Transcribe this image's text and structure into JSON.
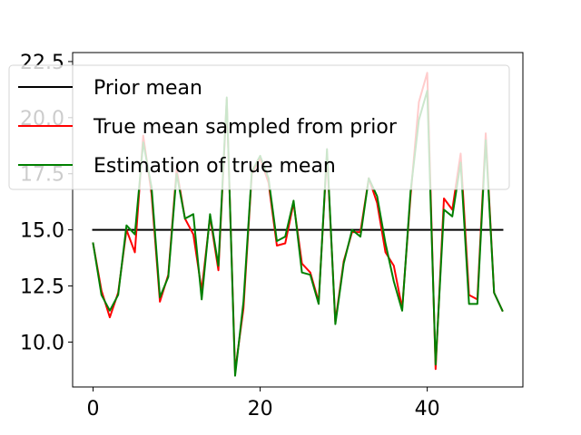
{
  "chart_data": {
    "type": "line",
    "title": "",
    "xlabel": "",
    "ylabel": "",
    "xlim": [
      -2.45,
      51.45
    ],
    "ylim": [
      8.0,
      22.9
    ],
    "xticks": [
      0,
      20,
      40
    ],
    "yticks": [
      10.0,
      12.5,
      15.0,
      17.5,
      20.0,
      22.5
    ],
    "xtick_labels": [
      "0",
      "20",
      "40"
    ],
    "ytick_labels": [
      "10.0",
      "12.5",
      "15.0",
      "17.5",
      "20.0",
      "22.5"
    ],
    "grid": false,
    "legend_position": "upper",
    "x": [
      0,
      1,
      2,
      3,
      4,
      5,
      6,
      7,
      8,
      9,
      10,
      11,
      12,
      13,
      14,
      15,
      16,
      17,
      18,
      19,
      20,
      21,
      22,
      23,
      24,
      25,
      26,
      27,
      28,
      29,
      30,
      31,
      32,
      33,
      34,
      35,
      36,
      37,
      38,
      39,
      40,
      41,
      42,
      43,
      44,
      45,
      46,
      47,
      48,
      49
    ],
    "series": [
      {
        "name": "Prior mean",
        "color": "#000000",
        "values": [
          15.0,
          15.0,
          15.0,
          15.0,
          15.0,
          15.0,
          15.0,
          15.0,
          15.0,
          15.0,
          15.0,
          15.0,
          15.0,
          15.0,
          15.0,
          15.0,
          15.0,
          15.0,
          15.0,
          15.0,
          15.0,
          15.0,
          15.0,
          15.0,
          15.0,
          15.0,
          15.0,
          15.0,
          15.0,
          15.0,
          15.0,
          15.0,
          15.0,
          15.0,
          15.0,
          15.0,
          15.0,
          15.0,
          15.0,
          15.0,
          15.0,
          15.0,
          15.0,
          15.0,
          15.0,
          15.0,
          15.0,
          15.0,
          15.0,
          15.0
        ]
      },
      {
        "name": "True mean sampled from prior",
        "color": "#ff0000",
        "values": [
          14.4,
          12.3,
          11.1,
          12.2,
          15.0,
          14.0,
          19.2,
          16.6,
          11.8,
          13.0,
          17.7,
          15.5,
          14.8,
          12.3,
          15.6,
          13.2,
          20.8,
          8.7,
          11.5,
          17.5,
          18.2,
          17.1,
          14.3,
          14.4,
          16.2,
          13.5,
          13.1,
          11.8,
          18.4,
          10.9,
          13.6,
          14.9,
          14.9,
          17.3,
          16.2,
          14.0,
          13.4,
          11.5,
          16.5,
          20.7,
          22.0,
          8.8,
          16.4,
          15.9,
          18.4,
          12.1,
          11.9,
          19.3,
          12.2,
          11.4
        ]
      },
      {
        "name": "Estimation of true mean",
        "color": "#008000",
        "values": [
          14.4,
          12.1,
          11.4,
          12.1,
          15.2,
          14.8,
          18.9,
          16.9,
          12.0,
          12.9,
          17.5,
          15.5,
          15.7,
          11.9,
          15.7,
          13.4,
          20.9,
          8.5,
          11.8,
          17.6,
          18.3,
          17.3,
          14.5,
          14.7,
          16.3,
          13.1,
          13.0,
          11.7,
          18.6,
          10.8,
          13.5,
          15.0,
          14.7,
          17.3,
          16.5,
          14.4,
          12.7,
          11.4,
          16.7,
          19.9,
          21.2,
          9.0,
          15.9,
          15.6,
          18.0,
          11.7,
          11.7,
          19.0,
          12.2,
          11.4
        ]
      }
    ]
  }
}
